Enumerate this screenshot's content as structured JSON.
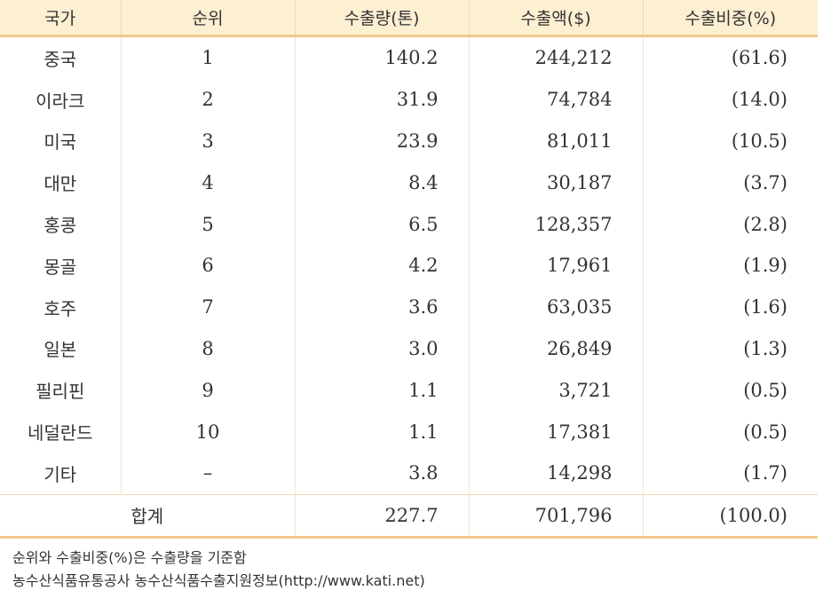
{
  "table": {
    "headers": [
      "국가",
      "순위",
      "수출량(톤)",
      "수출액($)",
      "수출비중(%)"
    ],
    "rows": [
      {
        "country": "중국",
        "rank": "1",
        "volume": "140.2",
        "amount": "244,212",
        "share": "(61.6)"
      },
      {
        "country": "이라크",
        "rank": "2",
        "volume": "31.9",
        "amount": "74,784",
        "share": "(14.0)"
      },
      {
        "country": "미국",
        "rank": "3",
        "volume": "23.9",
        "amount": "81,011",
        "share": "(10.5)"
      },
      {
        "country": "대만",
        "rank": "4",
        "volume": "8.4",
        "amount": "30,187",
        "share": "(3.7)"
      },
      {
        "country": "홍콩",
        "rank": "5",
        "volume": "6.5",
        "amount": "128,357",
        "share": "(2.8)"
      },
      {
        "country": "몽골",
        "rank": "6",
        "volume": "4.2",
        "amount": "17,961",
        "share": "(1.9)"
      },
      {
        "country": "호주",
        "rank": "7",
        "volume": "3.6",
        "amount": "63,035",
        "share": "(1.6)"
      },
      {
        "country": "일본",
        "rank": "8",
        "volume": "3.0",
        "amount": "26,849",
        "share": "(1.3)"
      },
      {
        "country": "필리핀",
        "rank": "9",
        "volume": "1.1",
        "amount": "3,721",
        "share": "(0.5)"
      },
      {
        "country": "네덜란드",
        "rank": "10",
        "volume": "1.1",
        "amount": "17,381",
        "share": "(0.5)"
      },
      {
        "country": "기타",
        "rank": "–",
        "volume": "3.8",
        "amount": "14,298",
        "share": "(1.7)"
      }
    ],
    "total": {
      "label": "합계",
      "volume": "227.7",
      "amount": "701,796",
      "share": "(100.0)"
    }
  },
  "notes": [
    "순위와 수출비중(%)은 수출량을 기준함",
    "농수산식품유통공사 농수산식품수출지원정보(http://www.kati.net)"
  ],
  "colors": {
    "header_bg": "#fdefd2",
    "rule": "#f2c98a"
  }
}
